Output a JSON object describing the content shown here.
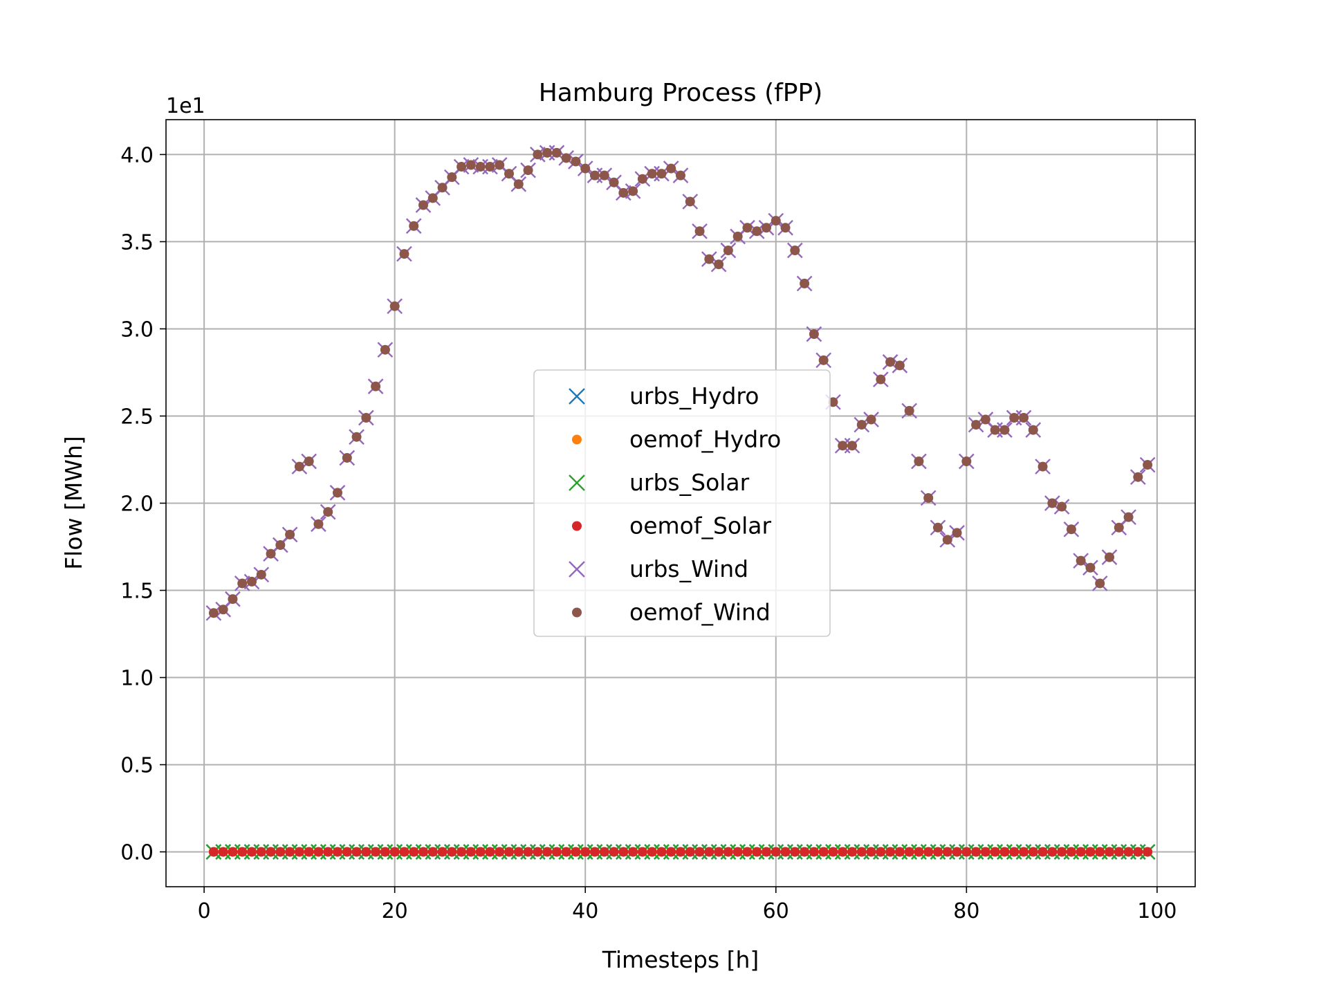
{
  "chart_data": {
    "type": "scatter",
    "title": "Hamburg Process (fPP)",
    "xlabel": "Timesteps [h]",
    "ylabel": "Flow [MWh]",
    "y_offset_text": "1e1",
    "xlim": [
      -4,
      104
    ],
    "ylim": [
      -0.2,
      4.2
    ],
    "y_scale_factor": 10,
    "x_ticks": [
      0,
      20,
      40,
      60,
      80,
      100
    ],
    "x_tick_labels": [
      "0",
      "20",
      "40",
      "60",
      "80",
      "100"
    ],
    "y_ticks": [
      0.0,
      0.5,
      1.0,
      1.5,
      2.0,
      2.5,
      3.0,
      3.5,
      4.0
    ],
    "y_tick_labels": [
      "0.0",
      "0.5",
      "1.0",
      "1.5",
      "2.0",
      "2.5",
      "3.0",
      "3.5",
      "4.0"
    ],
    "grid": true,
    "legend_position": "center",
    "x": [
      1,
      2,
      3,
      4,
      5,
      6,
      7,
      8,
      9,
      10,
      11,
      12,
      13,
      14,
      15,
      16,
      17,
      18,
      19,
      20,
      21,
      22,
      23,
      24,
      25,
      26,
      27,
      28,
      29,
      30,
      31,
      32,
      33,
      34,
      35,
      36,
      37,
      38,
      39,
      40,
      41,
      42,
      43,
      44,
      45,
      46,
      47,
      48,
      49,
      50,
      51,
      52,
      53,
      54,
      55,
      56,
      57,
      58,
      59,
      60,
      61,
      62,
      63,
      64,
      65,
      66,
      67,
      68,
      69,
      70,
      71,
      72,
      73,
      74,
      75,
      76,
      77,
      78,
      79,
      80,
      81,
      82,
      83,
      84,
      85,
      86,
      87,
      88,
      89,
      90,
      91,
      92,
      93,
      94,
      95,
      96,
      97,
      98,
      99
    ],
    "series": [
      {
        "name": "urbs_Hydro",
        "marker": "x",
        "color": "#1f77b4",
        "values": [
          0,
          0,
          0,
          0,
          0,
          0,
          0,
          0,
          0,
          0,
          0,
          0,
          0,
          0,
          0,
          0,
          0,
          0,
          0,
          0,
          0,
          0,
          0,
          0,
          0,
          0,
          0,
          0,
          0,
          0,
          0,
          0,
          0,
          0,
          0,
          0,
          0,
          0,
          0,
          0,
          0,
          0,
          0,
          0,
          0,
          0,
          0,
          0,
          0,
          0,
          0,
          0,
          0,
          0,
          0,
          0,
          0,
          0,
          0,
          0,
          0,
          0,
          0,
          0,
          0,
          0,
          0,
          0,
          0,
          0,
          0,
          0,
          0,
          0,
          0,
          0,
          0,
          0,
          0,
          0,
          0,
          0,
          0,
          0,
          0,
          0,
          0,
          0,
          0,
          0,
          0,
          0,
          0,
          0,
          0,
          0,
          0,
          0,
          0
        ]
      },
      {
        "name": "oemof_Hydro",
        "marker": "dot",
        "color": "#ff7f0e",
        "values": [
          0,
          0,
          0,
          0,
          0,
          0,
          0,
          0,
          0,
          0,
          0,
          0,
          0,
          0,
          0,
          0,
          0,
          0,
          0,
          0,
          0,
          0,
          0,
          0,
          0,
          0,
          0,
          0,
          0,
          0,
          0,
          0,
          0,
          0,
          0,
          0,
          0,
          0,
          0,
          0,
          0,
          0,
          0,
          0,
          0,
          0,
          0,
          0,
          0,
          0,
          0,
          0,
          0,
          0,
          0,
          0,
          0,
          0,
          0,
          0,
          0,
          0,
          0,
          0,
          0,
          0,
          0,
          0,
          0,
          0,
          0,
          0,
          0,
          0,
          0,
          0,
          0,
          0,
          0,
          0,
          0,
          0,
          0,
          0,
          0,
          0,
          0,
          0,
          0,
          0,
          0,
          0,
          0,
          0,
          0,
          0,
          0,
          0,
          0
        ]
      },
      {
        "name": "urbs_Solar",
        "marker": "x",
        "color": "#2ca02c",
        "values": [
          0,
          0,
          0,
          0,
          0,
          0,
          0,
          0,
          0,
          0,
          0,
          0,
          0,
          0,
          0,
          0,
          0,
          0,
          0,
          0,
          0,
          0,
          0,
          0,
          0,
          0,
          0,
          0,
          0,
          0,
          0,
          0,
          0,
          0,
          0,
          0,
          0,
          0,
          0,
          0,
          0,
          0,
          0,
          0,
          0,
          0,
          0,
          0,
          0,
          0,
          0,
          0,
          0,
          0,
          0,
          0,
          0,
          0,
          0,
          0,
          0,
          0,
          0,
          0,
          0,
          0,
          0,
          0,
          0,
          0,
          0,
          0,
          0,
          0,
          0,
          0,
          0,
          0,
          0,
          0,
          0,
          0,
          0,
          0,
          0,
          0,
          0,
          0,
          0,
          0,
          0,
          0,
          0,
          0,
          0,
          0,
          0,
          0,
          0
        ]
      },
      {
        "name": "oemof_Solar",
        "marker": "dot",
        "color": "#d62728",
        "values": [
          0,
          0,
          0,
          0,
          0,
          0,
          0,
          0,
          0,
          0,
          0,
          0,
          0,
          0,
          0,
          0,
          0,
          0,
          0,
          0,
          0,
          0,
          0,
          0,
          0,
          0,
          0,
          0,
          0,
          0,
          0,
          0,
          0,
          0,
          0,
          0,
          0,
          0,
          0,
          0,
          0,
          0,
          0,
          0,
          0,
          0,
          0,
          0,
          0,
          0,
          0,
          0,
          0,
          0,
          0,
          0,
          0,
          0,
          0,
          0,
          0,
          0,
          0,
          0,
          0,
          0,
          0,
          0,
          0,
          0,
          0,
          0,
          0,
          0,
          0,
          0,
          0,
          0,
          0,
          0,
          0,
          0,
          0,
          0,
          0,
          0,
          0,
          0,
          0,
          0,
          0,
          0,
          0,
          0,
          0,
          0,
          0,
          0,
          0
        ]
      },
      {
        "name": "urbs_Wind",
        "marker": "x",
        "color": "#9467bd",
        "values": [
          1.37,
          1.39,
          1.45,
          1.54,
          1.55,
          1.59,
          1.71,
          1.76,
          1.82,
          2.21,
          2.24,
          1.88,
          1.95,
          2.06,
          2.26,
          2.38,
          2.49,
          2.67,
          2.88,
          3.13,
          3.43,
          3.59,
          3.71,
          3.75,
          3.81,
          3.87,
          3.93,
          3.94,
          3.93,
          3.93,
          3.94,
          3.89,
          3.83,
          3.91,
          4.0,
          4.01,
          4.01,
          3.98,
          3.96,
          3.92,
          3.88,
          3.88,
          3.84,
          3.78,
          3.79,
          3.86,
          3.89,
          3.89,
          3.92,
          3.88,
          3.73,
          3.56,
          3.4,
          3.37,
          3.45,
          3.53,
          3.58,
          3.56,
          3.58,
          3.62,
          3.58,
          3.45,
          3.26,
          2.97,
          2.82,
          2.58,
          2.33,
          2.33,
          2.45,
          2.48,
          2.71,
          2.81,
          2.79,
          2.53,
          2.24,
          2.03,
          1.86,
          1.79,
          1.83,
          2.24,
          2.45,
          2.48,
          2.42,
          2.42,
          2.49,
          2.49,
          2.42,
          2.21,
          2.0,
          1.98,
          1.85,
          1.67,
          1.63,
          1.54,
          1.69,
          1.86,
          1.92,
          2.15,
          2.22
        ]
      },
      {
        "name": "oemof_Wind",
        "marker": "dot",
        "color": "#8c564b",
        "values": [
          1.37,
          1.39,
          1.45,
          1.54,
          1.55,
          1.59,
          1.71,
          1.76,
          1.82,
          2.21,
          2.24,
          1.88,
          1.95,
          2.06,
          2.26,
          2.38,
          2.49,
          2.67,
          2.88,
          3.13,
          3.43,
          3.59,
          3.71,
          3.75,
          3.81,
          3.87,
          3.93,
          3.94,
          3.93,
          3.93,
          3.94,
          3.89,
          3.83,
          3.91,
          4.0,
          4.01,
          4.01,
          3.98,
          3.96,
          3.92,
          3.88,
          3.88,
          3.84,
          3.78,
          3.79,
          3.86,
          3.89,
          3.89,
          3.92,
          3.88,
          3.73,
          3.56,
          3.4,
          3.37,
          3.45,
          3.53,
          3.58,
          3.56,
          3.58,
          3.62,
          3.58,
          3.45,
          3.26,
          2.97,
          2.82,
          2.58,
          2.33,
          2.33,
          2.45,
          2.48,
          2.71,
          2.81,
          2.79,
          2.53,
          2.24,
          2.03,
          1.86,
          1.79,
          1.83,
          2.24,
          2.45,
          2.48,
          2.42,
          2.42,
          2.49,
          2.49,
          2.42,
          2.21,
          2.0,
          1.98,
          1.85,
          1.67,
          1.63,
          1.54,
          1.69,
          1.86,
          1.92,
          2.15,
          2.22
        ]
      }
    ]
  }
}
